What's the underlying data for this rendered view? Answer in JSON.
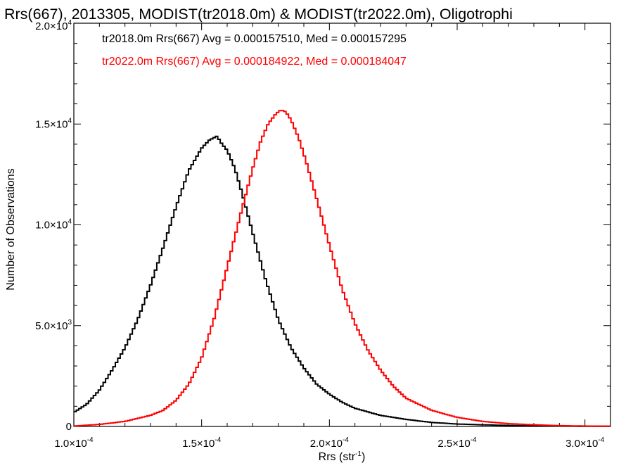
{
  "chart_data": {
    "type": "histogram",
    "title": "Rrs(667), 2013305, MODIST(tr2018.0m) & MODIST(tr2022.0m), Oligotrophi",
    "xlabel_main": "Rrs (str",
    "xlabel_sup": "-1",
    "xlabel_close": ")",
    "ylabel": "Number of Observations",
    "xlim": [
      0.0001,
      0.00031
    ],
    "ylim": [
      0,
      20000
    ],
    "x_ticks": [
      {
        "value": 0.0001,
        "mant": "1.0×10",
        "exp": "-4"
      },
      {
        "value": 0.00015,
        "mant": "1.5×10",
        "exp": "-4"
      },
      {
        "value": 0.0002,
        "mant": "2.0×10",
        "exp": "-4"
      },
      {
        "value": 0.00025,
        "mant": "2.5×10",
        "exp": "-4"
      },
      {
        "value": 0.0003,
        "mant": "3.0×10",
        "exp": "-4"
      }
    ],
    "y_ticks": [
      {
        "value": 0,
        "mant": "0",
        "exp": ""
      },
      {
        "value": 5000,
        "mant": "5.0×10",
        "exp": "3"
      },
      {
        "value": 10000,
        "mant": "1.0×10",
        "exp": "4"
      },
      {
        "value": 15000,
        "mant": "1.5×10",
        "exp": "4"
      },
      {
        "value": 20000,
        "mant": "2.0×10",
        "exp": "4"
      }
    ],
    "series": [
      {
        "name": "tr2018.0m",
        "color": "#000000",
        "annotation": "tr2018.0m Rrs(667) Avg = 0.000157510, Med = 0.000157295",
        "x": [
          0.0001,
          0.000105,
          0.00011,
          0.000115,
          0.00012,
          0.000125,
          0.00013,
          0.000135,
          0.00014,
          0.000145,
          0.00015,
          0.000153,
          0.000156,
          0.000158,
          0.00016,
          0.000163,
          0.000166,
          0.00017,
          0.000175,
          0.00018,
          0.000185,
          0.00019,
          0.000195,
          0.0002,
          0.000205,
          0.00021,
          0.00022,
          0.00023,
          0.00024,
          0.00025,
          0.00026,
          0.00027,
          0.00028,
          0.00029,
          0.0003,
          0.00031
        ],
        "y": [
          700,
          1100,
          1800,
          2800,
          3900,
          5300,
          7000,
          8900,
          10900,
          12700,
          13800,
          14200,
          14400,
          14000,
          13700,
          12800,
          11500,
          9600,
          7300,
          5300,
          3900,
          2900,
          2100,
          1600,
          1200,
          900,
          550,
          350,
          200,
          120,
          80,
          50,
          30,
          20,
          10,
          5
        ]
      },
      {
        "name": "tr2022.0m",
        "color": "#ff0000",
        "annotation": "tr2022.0m Rrs(667) Avg = 0.000184922, Med = 0.000184047",
        "x": [
          0.0001,
          0.00011,
          0.00012,
          0.00013,
          0.000135,
          0.00014,
          0.000145,
          0.00015,
          0.000155,
          0.00016,
          0.000165,
          0.00017,
          0.000173,
          0.000176,
          0.000179,
          0.000181,
          0.000183,
          0.000185,
          0.000188,
          0.000191,
          0.000195,
          0.0002,
          0.000205,
          0.00021,
          0.000215,
          0.00022,
          0.000225,
          0.00023,
          0.00024,
          0.00025,
          0.00026,
          0.00027,
          0.00028,
          0.00029,
          0.0003,
          0.00031
        ],
        "y": [
          20,
          100,
          250,
          550,
          800,
          1300,
          2100,
          3400,
          5400,
          7900,
          10400,
          12800,
          14100,
          15000,
          15500,
          15700,
          15600,
          15200,
          14300,
          13100,
          11300,
          9000,
          6800,
          5100,
          3800,
          2800,
          2000,
          1400,
          800,
          450,
          250,
          140,
          80,
          40,
          20,
          10
        ]
      }
    ]
  }
}
